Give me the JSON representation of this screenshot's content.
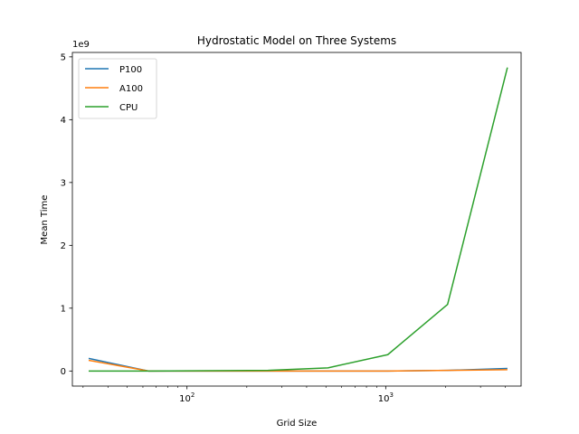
{
  "chart_data": {
    "type": "line",
    "title": "Hydrostatic Model on Three Systems",
    "xlabel": "Grid Size",
    "ylabel": "Mean Time",
    "y_offset_label": "1e9",
    "xscale": "log",
    "xlim": [
      26.5,
      4800
    ],
    "ylim": [
      -0.24,
      5.07
    ],
    "x_ticks": [
      {
        "value": 100,
        "base": "10",
        "exp": "2"
      },
      {
        "value": 1000,
        "base": "10",
        "exp": "3"
      }
    ],
    "y_ticks": [
      0,
      1,
      2,
      3,
      4,
      5
    ],
    "grid": false,
    "legend_position": "top-left",
    "x": [
      32,
      64,
      128,
      256,
      512,
      1024,
      2048,
      4096
    ],
    "series": [
      {
        "name": "P100",
        "color": "#1f77b4",
        "values": [
          0.2,
          0.0,
          0.0,
          0.0,
          0.0,
          0.0,
          0.01,
          0.04
        ]
      },
      {
        "name": "A100",
        "color": "#ff7f0e",
        "values": [
          0.17,
          0.0,
          0.0,
          0.0,
          0.0,
          0.0,
          0.01,
          0.02
        ]
      },
      {
        "name": "CPU",
        "color": "#2ca02c",
        "values": [
          0.0,
          0.0,
          0.005,
          0.01,
          0.05,
          0.26,
          1.06,
          4.83
        ]
      }
    ]
  }
}
